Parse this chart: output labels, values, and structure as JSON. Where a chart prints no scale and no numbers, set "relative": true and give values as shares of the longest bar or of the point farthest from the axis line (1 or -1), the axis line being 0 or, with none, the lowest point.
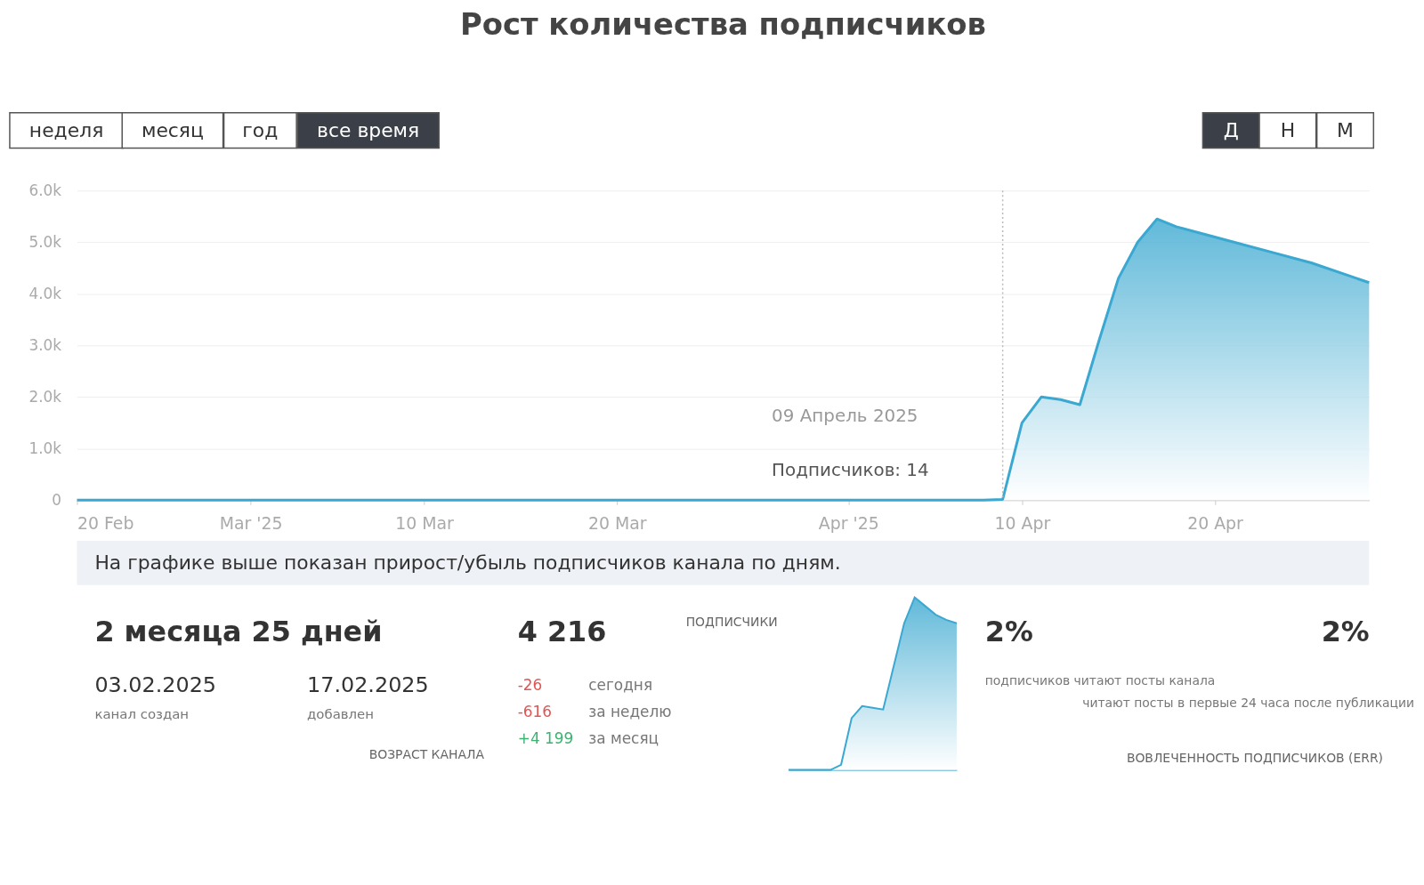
{
  "chart_data": [
    {
      "type": "area",
      "title": "Рост количества подписчиков",
      "x": [
        "2025-02-20",
        "2025-03-01",
        "2025-03-15",
        "2025-04-01",
        "2025-04-08",
        "2025-04-09",
        "2025-04-10",
        "2025-04-11",
        "2025-04-12",
        "2025-04-13",
        "2025-04-14",
        "2025-04-15",
        "2025-04-16",
        "2025-04-17",
        "2025-04-18",
        "2025-04-20",
        "2025-04-23",
        "2025-04-25",
        "2025-04-28"
      ],
      "series": [
        {
          "color": "#3aa8d0",
          "values": [
            0,
            0,
            0,
            0,
            0,
            14,
            1500,
            2000,
            1950,
            1850,
            3100,
            4300,
            5000,
            5450,
            5300,
            5100,
            4800,
            4600,
            4216
          ]
        }
      ],
      "xlim": [
        "2025-02-20",
        "2025-04-28"
      ],
      "xticks": [
        {
          "value": "2025-02-20",
          "label": "20 Feb"
        },
        {
          "value": "2025-03-01",
          "label": "Mar '25"
        },
        {
          "value": "2025-03-10",
          "label": "10 Mar"
        },
        {
          "value": "2025-03-20",
          "label": "20 Mar"
        },
        {
          "value": "2025-04-01",
          "label": "Apr '25"
        },
        {
          "value": "2025-04-10",
          "label": "10 Apr"
        },
        {
          "value": "2025-04-20",
          "label": "20 Apr"
        }
      ],
      "ylim": [
        0,
        6000
      ],
      "yticks": [
        0,
        {
          "value": 1000,
          "label": "1.0k"
        },
        {
          "value": 2000,
          "label": "2.0k"
        },
        {
          "value": 3000,
          "label": "3.0k"
        },
        {
          "value": 4000,
          "label": "4.0k"
        },
        {
          "value": 5000,
          "label": "5.0k"
        },
        {
          "value": 6000,
          "label": "6.0k"
        }
      ],
      "grid": "y",
      "ref_lines": [
        {
          "axis": "x",
          "value": "2025-04-09",
          "color": "#bbbbbb",
          "line_style": "dotted"
        }
      ],
      "annotations": [
        "неделя",
        "месяц",
        "год",
        "все время",
        "Д",
        "Н",
        "М",
        "09 Апрель 2025",
        "Подписчиков: 14"
      ]
    },
    {
      "type": "other",
      "annotations": [
        "На графике выше показан прирост/убыль подписчиков канала по дням.",
        "2 месяца 25 дней",
        "03.02.2025",
        "канал создан",
        "17.02.2025",
        "добавлен",
        "ВОЗРАСТ КАНАЛА",
        "4 216",
        "ПОДПИСЧИКИ",
        "-26",
        "сегодня",
        "-616",
        "за неделю",
        "+4 199",
        "за месяц",
        "2%",
        "подписчиков читают посты канала",
        "2%",
        "читают посты в первые 24 часа после публикации",
        "ВОВЛЕЧЕННОСТЬ ПОДПИСЧИКОВ (ERR)"
      ]
    },
    {
      "type": "area",
      "relative": true,
      "categories": [
        null,
        null,
        null,
        null,
        null,
        null,
        null,
        null,
        null,
        null,
        null,
        null,
        null,
        null,
        null,
        null,
        null
      ],
      "series": [
        {
          "color": "#3aa8d0",
          "values": [
            0,
            0,
            0,
            0,
            0,
            0.03,
            0.3,
            0.37,
            0.36,
            0.35,
            0.6,
            0.85,
            1,
            0.95,
            0.9,
            0.87,
            0.85
          ]
        }
      ]
    }
  ]
}
